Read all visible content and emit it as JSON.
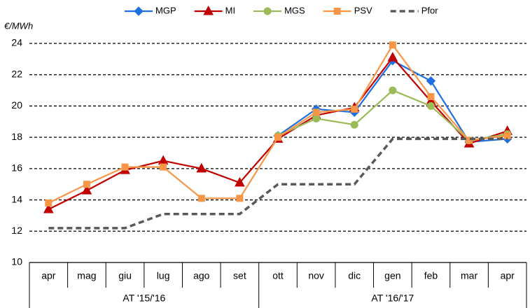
{
  "chart_data": {
    "type": "line",
    "y_label": "€/MWh",
    "categories": [
      "apr",
      "mag",
      "giu",
      "lug",
      "ago",
      "set",
      "ott",
      "nov",
      "dic",
      "gen",
      "feb",
      "mar",
      "apr"
    ],
    "groups": [
      {
        "label": "AT '15/'16",
        "count": 6
      },
      {
        "label": "AT '16/'17",
        "count": 7
      }
    ],
    "series": [
      {
        "name": "MGP",
        "color": "#1f6fe0",
        "marker": "diamond",
        "dashed": false,
        "values": [
          null,
          null,
          null,
          null,
          null,
          null,
          18.1,
          19.8,
          19.6,
          22.9,
          21.6,
          17.7,
          17.9
        ]
      },
      {
        "name": "MI",
        "color": "#c00000",
        "marker": "triangle",
        "dashed": false,
        "values": [
          13.4,
          14.6,
          15.9,
          16.5,
          16.0,
          15.1,
          17.9,
          19.4,
          19.9,
          23.1,
          20.3,
          17.6,
          18.4
        ]
      },
      {
        "name": "MGS",
        "color": "#9bbb59",
        "marker": "circle",
        "dashed": false,
        "values": [
          null,
          null,
          null,
          null,
          null,
          null,
          18.1,
          19.2,
          18.8,
          21.0,
          20.0,
          17.8,
          18.2
        ]
      },
      {
        "name": "PSV",
        "color": "#f79646",
        "marker": "square",
        "dashed": false,
        "values": [
          13.8,
          15.0,
          16.1,
          16.1,
          14.1,
          14.1,
          18.0,
          19.6,
          19.8,
          23.9,
          20.6,
          17.8,
          18.1
        ]
      },
      {
        "name": "Pfor",
        "color": "#595959",
        "marker": "none",
        "dashed": true,
        "values": [
          12.2,
          12.2,
          12.2,
          13.1,
          13.1,
          13.1,
          15.0,
          15.0,
          15.0,
          17.9,
          17.9,
          17.9,
          17.9
        ]
      }
    ],
    "ylim": [
      10,
      24
    ],
    "yticks": [
      10,
      12,
      14,
      16,
      18,
      20,
      22,
      24
    ],
    "grid": true
  }
}
